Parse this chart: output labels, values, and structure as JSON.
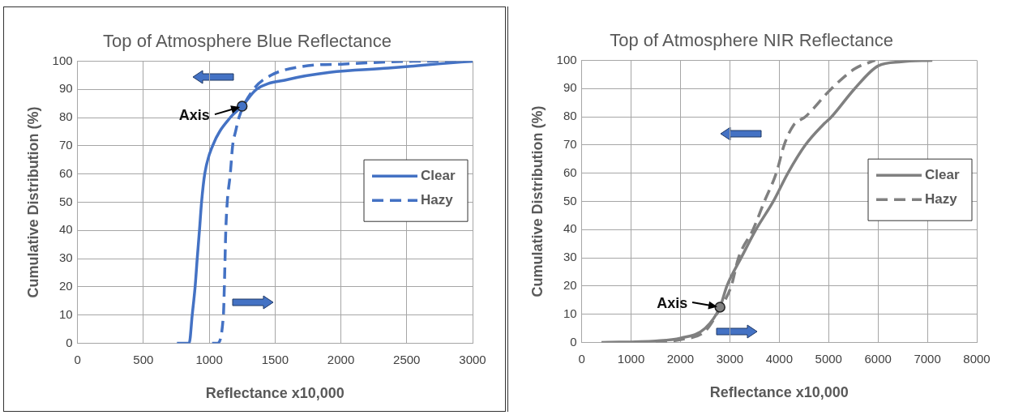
{
  "chart_data": [
    {
      "type": "line",
      "title": "Top of Atmosphere Blue Reflectance",
      "xlabel": "Reflectance x10,000",
      "ylabel": "Cumulative Distribution (%)",
      "xlim": [
        0,
        3000
      ],
      "xticks": [
        0,
        500,
        1000,
        1500,
        2000,
        2500,
        3000
      ],
      "ylim": [
        0,
        100
      ],
      "yticks": [
        0,
        10,
        20,
        30,
        40,
        50,
        60,
        70,
        80,
        90,
        100
      ],
      "grid": true,
      "legend": "right",
      "marker": "none",
      "annotations": [
        {
          "text": "Axis",
          "x": 1250,
          "y": 84
        }
      ],
      "series": [
        {
          "name": "Clear",
          "color": "#4472c4",
          "line_style": "solid",
          "x": [
            755,
            848,
            871,
            893,
            909,
            926,
            942,
            966,
            1026,
            1160,
            1249,
            1360,
            1600,
            1915,
            2360,
            2737,
            3000
          ],
          "values": [
            0,
            0,
            10,
            20,
            30,
            40,
            50,
            60,
            70,
            80,
            84,
            90,
            93.5,
            96,
            97.5,
            99,
            100
          ]
        },
        {
          "name": "Hazy",
          "color": "#4472c4",
          "line_style": "dashed",
          "x": [
            1022,
            1060,
            1108,
            1115,
            1126,
            1137,
            1160,
            1178,
            1200,
            1226,
            1337,
            1470,
            1693,
            2026,
            2670,
            3000
          ],
          "values": [
            0,
            0,
            10,
            20,
            40,
            50,
            60,
            70,
            75,
            80,
            90,
            95,
            98,
            99,
            100,
            100
          ]
        }
      ]
    },
    {
      "type": "line",
      "title": "Top of Atmosphere NIR Reflectance",
      "xlabel": "Reflectance x10,000",
      "ylabel": "Cumulative Distribution (%)",
      "xlim": [
        0,
        8000
      ],
      "xticks": [
        0,
        1000,
        2000,
        3000,
        4000,
        5000,
        6000,
        7000,
        8000
      ],
      "ylim": [
        0,
        100
      ],
      "yticks": [
        0,
        10,
        20,
        30,
        40,
        50,
        60,
        70,
        80,
        90,
        100
      ],
      "grid": true,
      "legend": "right",
      "marker": "none",
      "annotations": [
        {
          "text": "Axis",
          "x": 2800,
          "y": 12.5
        }
      ],
      "series": [
        {
          "name": "Clear",
          "color": "#808080",
          "line_style": "solid",
          "x": [
            400,
            1500,
            2000,
            2500,
            2800,
            2940,
            3230,
            3530,
            3880,
            4175,
            4530,
            4880,
            5060,
            5530,
            6000,
            6470,
            7100
          ],
          "values": [
            0,
            0.5,
            1.5,
            5,
            12.5,
            20,
            30,
            40,
            50,
            60,
            70,
            77,
            80,
            90,
            98,
            99.5,
            100
          ]
        },
        {
          "name": "Hazy",
          "color": "#808080",
          "line_style": "dashed",
          "x": [
            1500,
            2000,
            2500,
            2800,
            3030,
            3175,
            3470,
            3700,
            3940,
            4100,
            4290,
            4530,
            5060,
            5530,
            5940
          ],
          "values": [
            0,
            1,
            4,
            12,
            20,
            30,
            40,
            50,
            60,
            70,
            77,
            80,
            90,
            97,
            100
          ]
        }
      ]
    }
  ]
}
